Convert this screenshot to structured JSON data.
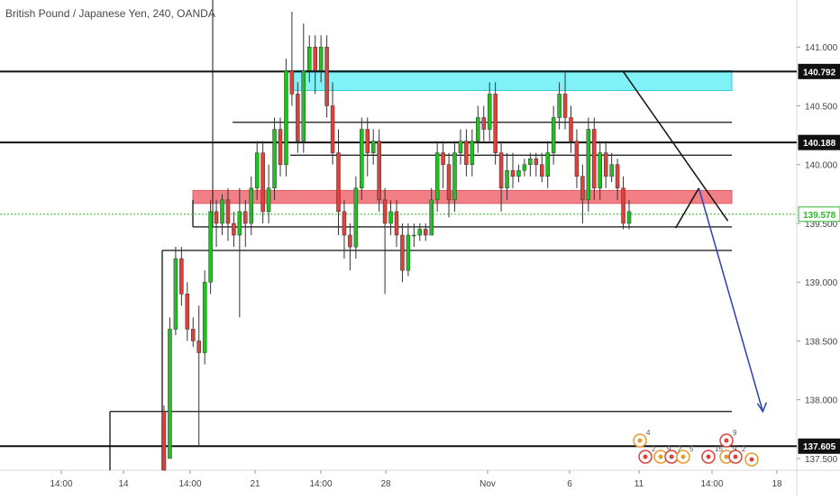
{
  "chart_data": {
    "type": "candlestick",
    "title": "British Pound / Japanese Yen, 240, OANDA",
    "ylim": [
      137.4,
      141.4
    ],
    "y_ticks": [
      {
        "value": 141.0,
        "label": "141.000"
      },
      {
        "value": 140.5,
        "label": "140.500"
      },
      {
        "value": 140.0,
        "label": "140.000"
      },
      {
        "value": 139.5,
        "label": "139.500"
      },
      {
        "value": 139.0,
        "label": "139.000"
      },
      {
        "value": 138.5,
        "label": "138.500"
      },
      {
        "value": 138.0,
        "label": "138.000"
      },
      {
        "value": 137.5,
        "label": "137.500"
      }
    ],
    "x_ticks": [
      "14:00",
      "14",
      "14:00",
      "21",
      "14:00",
      "28",
      "Nov",
      "6",
      "11",
      "14:00",
      "18"
    ],
    "price_labels": [
      {
        "value": 140.792,
        "label": "140.792",
        "style": "dark"
      },
      {
        "value": 140.188,
        "label": "140.188",
        "style": "dark"
      },
      {
        "value": 139.578,
        "label": "139.578",
        "style": "green"
      },
      {
        "value": 137.605,
        "label": "137.605",
        "style": "dark"
      }
    ],
    "current_price": 139.578,
    "horizontal_levels": [
      140.792,
      140.188,
      137.605
    ],
    "zones": [
      {
        "name": "supply",
        "color": "#7ff2f7",
        "top": 140.8,
        "bottom": 140.63
      },
      {
        "name": "demand",
        "color": "#f17f85",
        "top": 139.78,
        "bottom": 139.67
      }
    ],
    "colors": {
      "up": "#1ec21e",
      "down": "#d9433c",
      "arrow": "#2c3fb8",
      "current_line": "#2cbc2c"
    },
    "candles": [
      [
        137.9,
        137.4,
        137.95,
        137.4
      ],
      [
        137.5,
        138.6,
        138.7,
        137.5
      ],
      [
        138.6,
        139.2,
        139.3,
        138.55
      ],
      [
        139.2,
        138.9,
        139.3,
        138.8
      ],
      [
        138.9,
        138.6,
        139.0,
        138.5
      ],
      [
        138.6,
        138.5,
        138.7,
        138.45
      ],
      [
        138.5,
        138.4,
        138.8,
        137.6
      ],
      [
        138.4,
        139.0,
        139.1,
        138.3
      ],
      [
        139.0,
        139.6,
        139.7,
        138.9
      ],
      [
        139.6,
        139.5,
        139.7,
        139.3
      ],
      [
        139.5,
        139.7,
        139.75,
        139.4
      ],
      [
        139.7,
        139.5,
        139.8,
        139.35
      ],
      [
        139.5,
        139.4,
        139.6,
        139.3
      ],
      [
        139.4,
        139.6,
        139.8,
        138.7
      ],
      [
        139.6,
        139.5,
        139.7,
        139.3
      ],
      [
        139.5,
        139.8,
        139.9,
        139.4
      ],
      [
        139.8,
        140.1,
        140.2,
        139.7
      ],
      [
        140.1,
        139.6,
        140.2,
        139.5
      ],
      [
        139.6,
        139.8,
        140.0,
        139.5
      ],
      [
        139.8,
        140.3,
        140.4,
        139.7
      ],
      [
        140.3,
        140.0,
        140.4,
        139.9
      ],
      [
        140.0,
        140.8,
        140.9,
        139.9
      ],
      [
        140.8,
        140.6,
        141.3,
        140.5
      ],
      [
        140.6,
        140.2,
        140.7,
        140.1
      ],
      [
        140.2,
        140.8,
        141.2,
        140.1
      ],
      [
        140.8,
        141.0,
        141.1,
        140.7
      ],
      [
        141.0,
        140.8,
        141.1,
        140.6
      ],
      [
        140.8,
        141.0,
        141.1,
        140.7
      ],
      [
        141.0,
        140.5,
        141.1,
        140.4
      ],
      [
        140.5,
        140.1,
        140.7,
        140.0
      ],
      [
        140.1,
        139.6,
        140.3,
        139.4
      ],
      [
        139.6,
        139.4,
        139.7,
        139.2
      ],
      [
        139.4,
        139.3,
        139.5,
        139.1
      ],
      [
        139.3,
        139.8,
        139.9,
        139.2
      ],
      [
        139.8,
        140.3,
        140.4,
        139.7
      ],
      [
        140.3,
        140.1,
        140.4,
        139.9
      ],
      [
        140.1,
        140.2,
        140.3,
        140.0
      ],
      [
        140.2,
        139.7,
        140.3,
        139.6
      ],
      [
        139.7,
        139.5,
        139.8,
        138.9
      ],
      [
        139.5,
        139.6,
        139.7,
        139.4
      ],
      [
        139.6,
        139.4,
        139.7,
        139.3
      ],
      [
        139.4,
        139.1,
        139.5,
        139.0
      ],
      [
        139.1,
        139.4,
        139.5,
        139.05
      ],
      [
        139.4,
        139.4,
        139.5,
        139.3
      ],
      [
        139.4,
        139.45,
        139.5,
        139.35
      ],
      [
        139.45,
        139.4,
        139.5,
        139.35
      ],
      [
        139.4,
        139.7,
        139.8,
        139.4
      ],
      [
        139.7,
        140.1,
        140.2,
        139.6
      ],
      [
        140.1,
        140.0,
        140.2,
        139.8
      ],
      [
        140.0,
        139.7,
        140.1,
        139.55
      ],
      [
        139.7,
        140.1,
        140.2,
        139.6
      ],
      [
        140.1,
        140.2,
        140.3,
        140.0
      ],
      [
        140.2,
        140.0,
        140.3,
        139.9
      ],
      [
        140.0,
        140.2,
        140.3,
        139.9
      ],
      [
        140.2,
        140.4,
        140.5,
        140.1
      ],
      [
        140.4,
        140.3,
        140.5,
        140.2
      ],
      [
        140.3,
        140.6,
        140.7,
        140.2
      ],
      [
        140.6,
        140.1,
        140.7,
        140.0
      ],
      [
        140.1,
        139.8,
        140.2,
        139.6
      ],
      [
        139.8,
        139.95,
        140.1,
        139.7
      ],
      [
        139.95,
        139.9,
        140.1,
        139.8
      ],
      [
        139.9,
        139.95,
        140.0,
        139.85
      ],
      [
        139.95,
        140.0,
        140.05,
        139.9
      ],
      [
        140.0,
        140.05,
        140.1,
        139.9
      ],
      [
        140.05,
        140.0,
        140.1,
        139.9
      ],
      [
        140.0,
        139.9,
        140.1,
        139.85
      ],
      [
        139.9,
        140.1,
        140.2,
        139.8
      ],
      [
        140.1,
        140.4,
        140.5,
        140.0
      ],
      [
        140.4,
        140.6,
        140.7,
        140.3
      ],
      [
        140.6,
        140.4,
        140.8,
        140.3
      ],
      [
        140.4,
        140.2,
        140.5,
        140.1
      ],
      [
        140.2,
        139.9,
        140.3,
        139.8
      ],
      [
        139.9,
        139.7,
        140.0,
        139.5
      ],
      [
        139.7,
        140.3,
        140.4,
        139.6
      ],
      [
        140.3,
        139.8,
        140.4,
        139.7
      ],
      [
        139.8,
        140.1,
        140.2,
        139.7
      ],
      [
        140.1,
        139.9,
        140.2,
        139.8
      ],
      [
        139.9,
        140.0,
        140.1,
        139.85
      ],
      [
        140.0,
        139.8,
        140.05,
        139.7
      ],
      [
        139.8,
        139.5,
        139.9,
        139.45
      ],
      [
        139.5,
        139.6,
        139.7,
        139.45
      ]
    ],
    "drawings": {
      "trendline": [
        [
          79,
          140.79
        ],
        [
          97,
          139.52
        ]
      ],
      "projection": [
        [
          88,
          139.46
        ],
        [
          92,
          139.8
        ],
        [
          103,
          137.9
        ]
      ]
    },
    "event_counts": [
      "4",
      "9",
      "2",
      "9",
      "2",
      "5",
      "15",
      "9",
      "2"
    ]
  }
}
